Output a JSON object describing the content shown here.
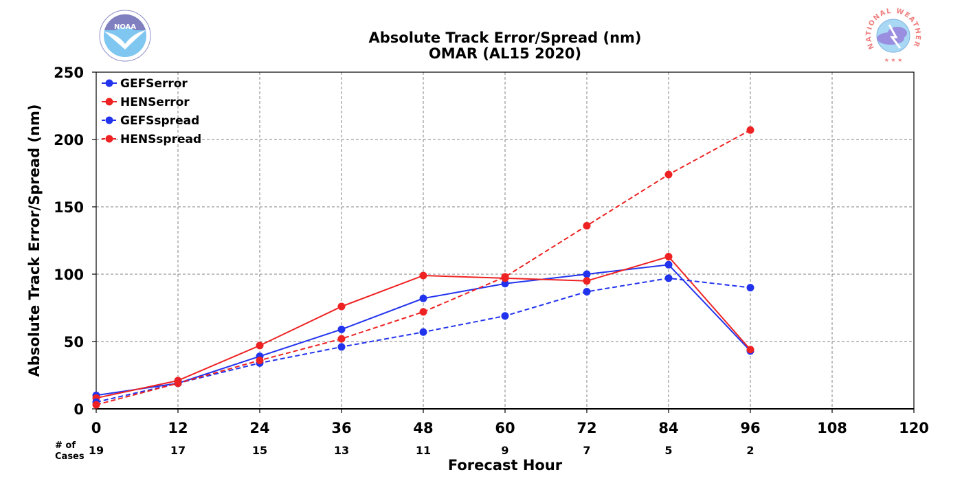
{
  "chart_data": {
    "type": "line",
    "title_line1": "Absolute Track Error/Spread (nm)",
    "title_line2": "OMAR (AL15 2020)",
    "xlabel": "Forecast Hour",
    "ylabel": "Absolute Track Error/Spread (nm)",
    "xlim": [
      0,
      120
    ],
    "ylim": [
      0,
      250
    ],
    "x_ticks": [
      0,
      12,
      24,
      36,
      48,
      60,
      72,
      84,
      96,
      108,
      120
    ],
    "y_ticks": [
      0,
      50,
      100,
      150,
      200,
      250
    ],
    "grid": true,
    "legend_position": "top-left",
    "cases_label": "# of\nCases",
    "cases": [
      {
        "x": 0,
        "n": "19"
      },
      {
        "x": 12,
        "n": "17"
      },
      {
        "x": 24,
        "n": "15"
      },
      {
        "x": 36,
        "n": "13"
      },
      {
        "x": 48,
        "n": "11"
      },
      {
        "x": 60,
        "n": "9"
      },
      {
        "x": 72,
        "n": "7"
      },
      {
        "x": 84,
        "n": "5"
      },
      {
        "x": 96,
        "n": "2"
      }
    ],
    "x": [
      0,
      12,
      24,
      36,
      48,
      60,
      72,
      84,
      96
    ],
    "series": [
      {
        "name": "GEFSerror",
        "color": "#2233ee",
        "dash": "solid",
        "values": [
          10,
          19,
          39,
          59,
          82,
          93,
          100,
          107,
          43
        ]
      },
      {
        "name": "HENSerror",
        "color": "#ee2222",
        "dash": "solid",
        "values": [
          8,
          21,
          47,
          76,
          99,
          97,
          95,
          113,
          44
        ]
      },
      {
        "name": "GEFSspread",
        "color": "#2233ee",
        "dash": "dashed",
        "values": [
          5,
          19,
          34,
          46,
          57,
          69,
          87,
          97,
          90
        ]
      },
      {
        "name": "HENSspread",
        "color": "#ee2222",
        "dash": "dashed",
        "values": [
          3,
          19,
          36,
          52,
          72,
          98,
          136,
          174,
          207
        ]
      }
    ]
  },
  "logos": {
    "noaa": {
      "text": "NOAA",
      "ring_text": "NATIONAL OCEANIC AND ATMOSPHERIC ADMINISTRATION · U.S. DEPARTMENT OF COMMERCE"
    },
    "nws": {
      "ring_text": "NATIONAL WEATHER SERVICE"
    }
  }
}
